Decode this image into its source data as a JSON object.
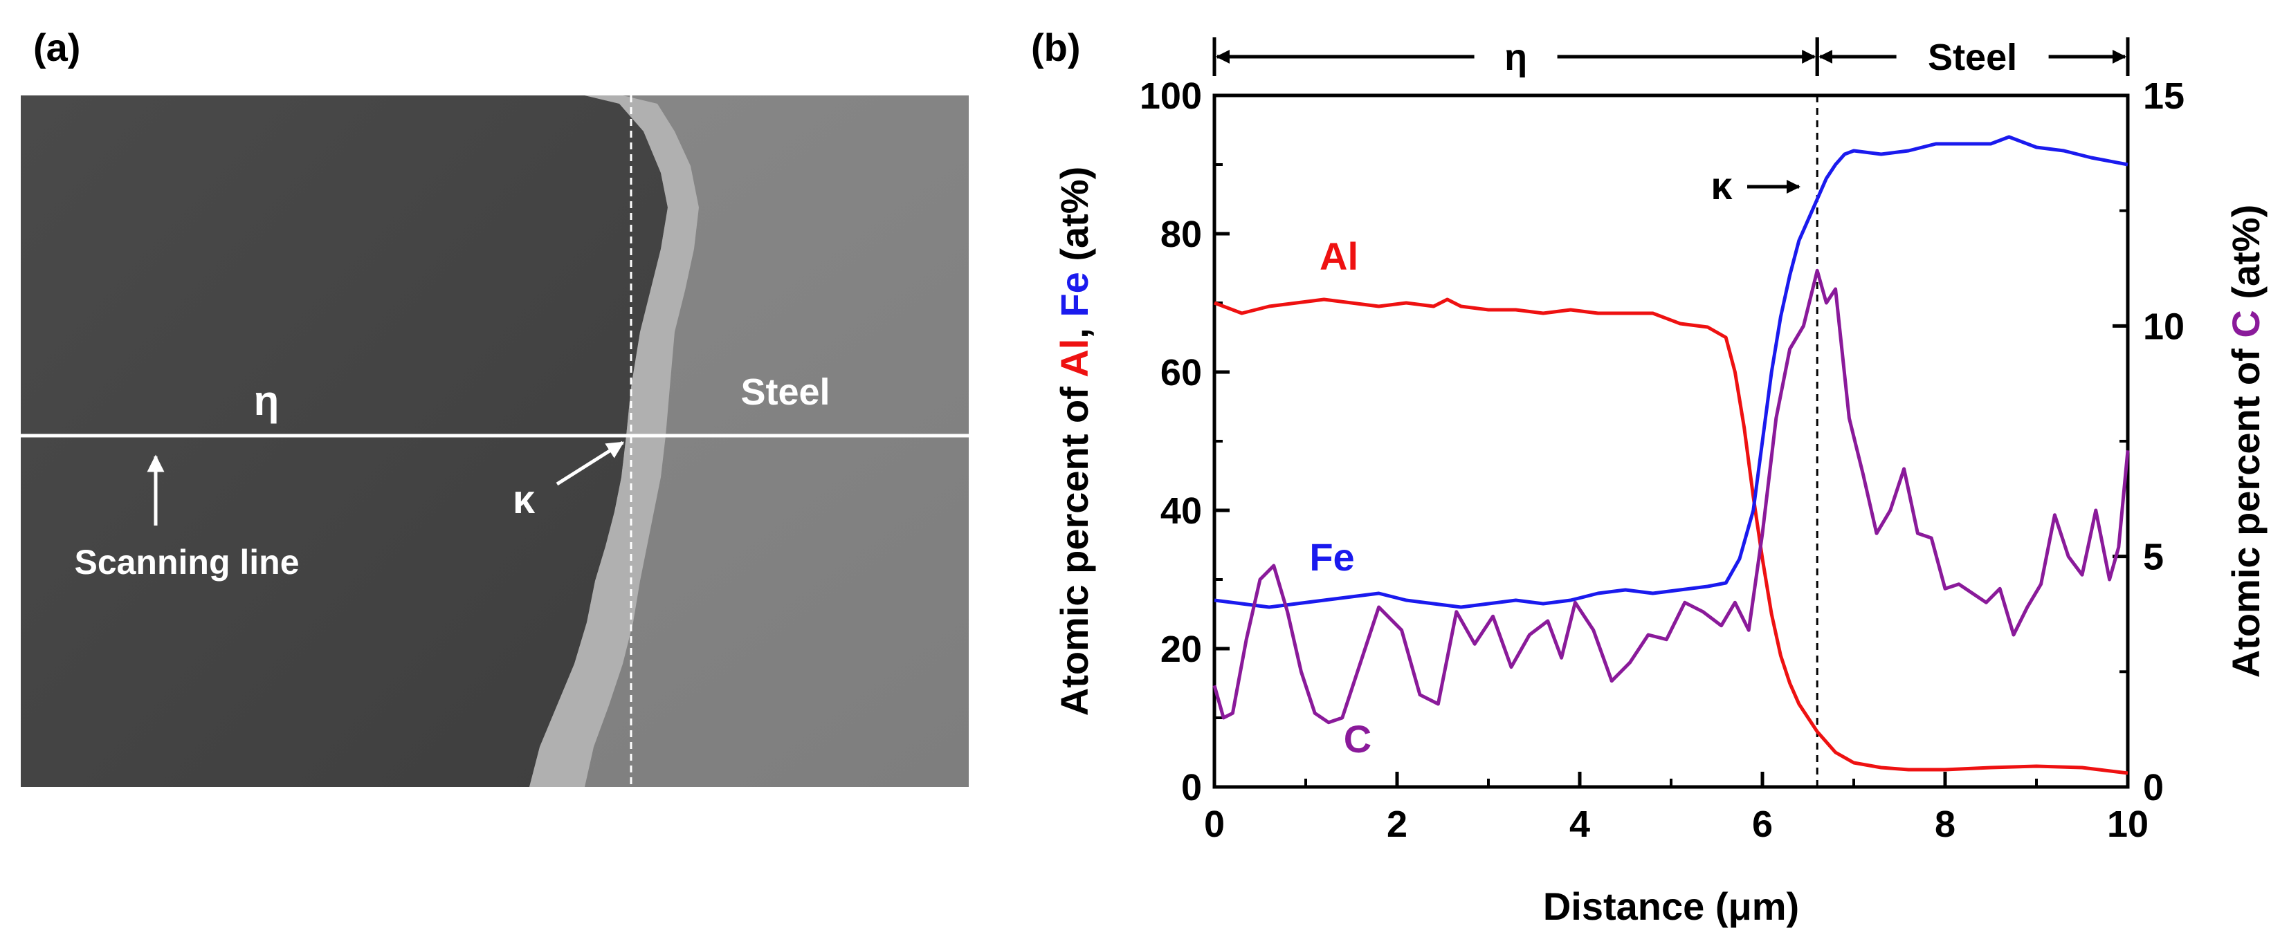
{
  "panel_a": {
    "label": "(a)",
    "region_left": "η",
    "region_right": "Steel",
    "phase_label": "κ",
    "scan_label": "Scanning line"
  },
  "chart_data": {
    "type": "line",
    "panel_label": "(b)",
    "xlabel": "Distance (μm)",
    "ylabel_parts": [
      "Atomic percent of ",
      "Al",
      ", ",
      "Fe",
      " (at%)"
    ],
    "ylabel_right_parts": [
      "Atomic percent of ",
      "C",
      " (at%)"
    ],
    "xlim": [
      0,
      10
    ],
    "ylim": [
      0,
      100
    ],
    "ylim_right": [
      0,
      15
    ],
    "x_ticks": [
      0,
      2,
      4,
      6,
      8,
      10
    ],
    "y_ticks": [
      0,
      20,
      40,
      60,
      80,
      100
    ],
    "y_right_ticks": [
      0,
      5,
      10,
      15
    ],
    "regions": [
      {
        "label": "η",
        "from": 0,
        "to": 6.6
      },
      {
        "label": "Steel",
        "from": 6.6,
        "to": 10
      }
    ],
    "kappa": {
      "label": "κ",
      "x": 6.6
    },
    "series": [
      {
        "name": "Al",
        "color": "#ee1111",
        "axis": "left",
        "x": [
          0,
          0.3,
          0.6,
          0.9,
          1.2,
          1.5,
          1.8,
          2.1,
          2.4,
          2.55,
          2.7,
          3.0,
          3.3,
          3.6,
          3.9,
          4.2,
          4.5,
          4.8,
          5.1,
          5.4,
          5.6,
          5.7,
          5.8,
          5.9,
          6.0,
          6.1,
          6.2,
          6.3,
          6.4,
          6.5,
          6.6,
          6.8,
          7.0,
          7.3,
          7.6,
          8.0,
          8.5,
          9.0,
          9.5,
          10.0
        ],
        "values": [
          70,
          68.5,
          69.5,
          70,
          70.5,
          70,
          69.5,
          70,
          69.5,
          70.5,
          69.5,
          69,
          69,
          68.5,
          69,
          68.5,
          68.5,
          68.5,
          67,
          66.5,
          65,
          60,
          52,
          42,
          33,
          25,
          19,
          15,
          12,
          10,
          8,
          5,
          3.5,
          2.8,
          2.5,
          2.5,
          2.8,
          3,
          2.8,
          2
        ]
      },
      {
        "name": "Fe",
        "color": "#1a1aee",
        "axis": "left",
        "x": [
          0,
          0.3,
          0.6,
          0.9,
          1.2,
          1.5,
          1.8,
          2.1,
          2.4,
          2.7,
          3.0,
          3.3,
          3.6,
          3.9,
          4.2,
          4.5,
          4.8,
          5.1,
          5.4,
          5.6,
          5.75,
          5.9,
          6.0,
          6.1,
          6.2,
          6.3,
          6.4,
          6.5,
          6.6,
          6.7,
          6.8,
          6.9,
          7.0,
          7.3,
          7.6,
          7.9,
          8.2,
          8.5,
          8.7,
          9.0,
          9.3,
          9.6,
          10.0
        ],
        "values": [
          27,
          26.5,
          26,
          26.5,
          27,
          27.5,
          28,
          27,
          26.5,
          26,
          26.5,
          27,
          26.5,
          27,
          28,
          28.5,
          28,
          28.5,
          29,
          29.5,
          33,
          40,
          50,
          60,
          68,
          74,
          79,
          82,
          85,
          88,
          90,
          91.5,
          92,
          91.5,
          92,
          93,
          93,
          93,
          94,
          92.5,
          92,
          91,
          90
        ]
      },
      {
        "name": "C",
        "color": "#8a1a9a",
        "axis": "right",
        "x": [
          0,
          0.1,
          0.2,
          0.35,
          0.5,
          0.65,
          0.8,
          0.95,
          1.1,
          1.25,
          1.4,
          1.55,
          1.8,
          2.05,
          2.25,
          2.45,
          2.65,
          2.85,
          3.05,
          3.25,
          3.45,
          3.65,
          3.8,
          3.95,
          4.15,
          4.35,
          4.55,
          4.75,
          4.95,
          5.15,
          5.35,
          5.55,
          5.7,
          5.85,
          6.0,
          6.15,
          6.3,
          6.45,
          6.6,
          6.7,
          6.8,
          6.95,
          7.1,
          7.25,
          7.4,
          7.55,
          7.7,
          7.85,
          8.0,
          8.15,
          8.3,
          8.45,
          8.6,
          8.75,
          8.9,
          9.05,
          9.2,
          9.35,
          9.5,
          9.65,
          9.8,
          9.9,
          10.0
        ],
        "values": [
          2.2,
          1.5,
          1.6,
          3.2,
          4.5,
          4.8,
          3.8,
          2.5,
          1.6,
          1.4,
          1.5,
          2.4,
          3.9,
          3.4,
          2.0,
          1.8,
          3.8,
          3.1,
          3.7,
          2.6,
          3.3,
          3.6,
          2.8,
          4.0,
          3.4,
          2.3,
          2.7,
          3.3,
          3.2,
          4.0,
          3.8,
          3.5,
          4.0,
          3.4,
          5.5,
          8.0,
          9.5,
          10.0,
          11.2,
          10.5,
          10.8,
          8.0,
          6.8,
          5.5,
          6.0,
          6.9,
          5.5,
          5.4,
          4.3,
          4.4,
          4.2,
          4.0,
          4.3,
          3.3,
          3.9,
          4.4,
          5.9,
          5.0,
          4.6,
          6.0,
          4.5,
          5.2,
          7.3
        ]
      }
    ],
    "annotations": [
      {
        "text": "Al",
        "color": "#ee1111"
      },
      {
        "text": "Fe",
        "color": "#1a1aee"
      },
      {
        "text": "C",
        "color": "#8a1a9a"
      }
    ]
  }
}
